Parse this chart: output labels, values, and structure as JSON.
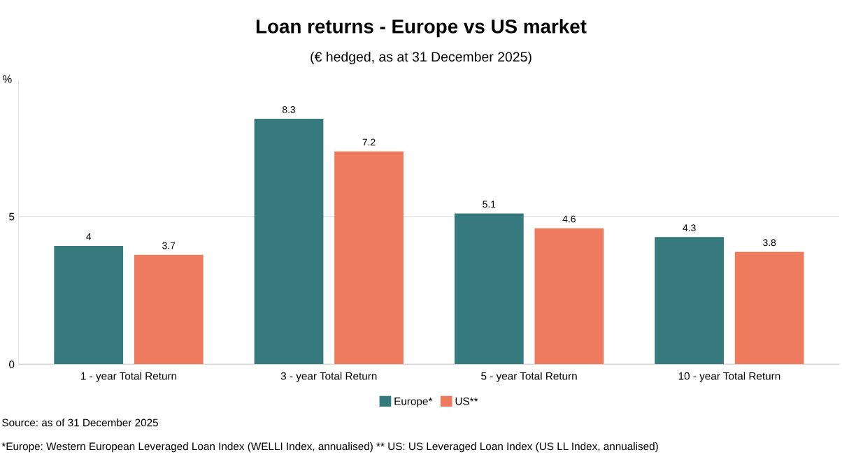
{
  "chart_data": {
    "type": "bar",
    "title": "Loan returns - Europe vs US market",
    "subtitle": "(€ hedged, as at 31 December 2025)",
    "ylabel": "%",
    "categories": [
      "1 - year Total Return",
      "3 - year Total Return",
      "5 - year Total Return",
      "10 - year Total Return"
    ],
    "series": [
      {
        "name": "Europe*",
        "color": "#367a7d",
        "values": [
          4,
          8.3,
          5.1,
          4.3
        ]
      },
      {
        "name": "US**",
        "color": "#ee7b5e",
        "values": [
          3.7,
          7.2,
          4.6,
          3.8
        ]
      }
    ],
    "ylim": [
      0,
      9.6
    ],
    "yticks": [
      0,
      5
    ],
    "grid": "y",
    "legend": "bottom",
    "data_labels": true,
    "annotations": [
      "Source: as of 31 December 2025",
      "*Europe: Western European Leveraged Loan Index (WELLI Index, annualised) ** US: US Leveraged Loan Index (US LL Index, annualised)"
    ]
  }
}
